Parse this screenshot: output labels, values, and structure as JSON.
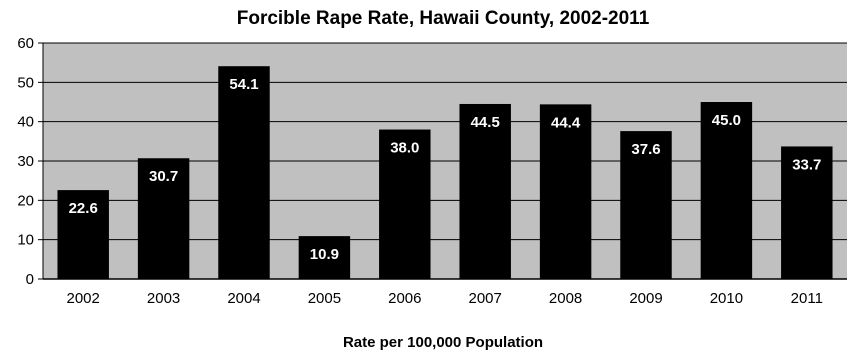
{
  "chart_data": {
    "type": "bar",
    "title": "Forcible Rape Rate, Hawaii County, 2002-2011",
    "xlabel": "Rate per 100,000 Population",
    "ylabel": "",
    "categories": [
      "2002",
      "2003",
      "2004",
      "2005",
      "2006",
      "2007",
      "2008",
      "2009",
      "2010",
      "2011"
    ],
    "values": [
      22.6,
      30.7,
      54.1,
      10.9,
      38.0,
      44.5,
      44.4,
      37.6,
      45.0,
      33.7
    ],
    "value_labels": [
      "22.6",
      "30.7",
      "54.1",
      "10.9",
      "38.0",
      "44.5",
      "44.4",
      "37.6",
      "45.0",
      "33.7"
    ],
    "ylim": [
      0,
      60
    ],
    "yticks": [
      0,
      10,
      20,
      30,
      40,
      50,
      60
    ],
    "grid": true,
    "legend": "none",
    "colors": {
      "bar": "#000000",
      "plot_background": "#c0c0c0",
      "gridline": "#000000",
      "value_label": "#ffffff"
    }
  }
}
